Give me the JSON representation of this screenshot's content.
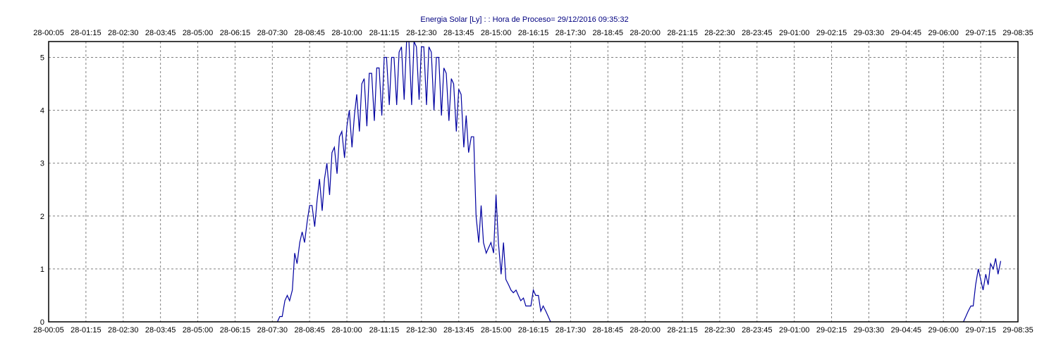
{
  "chart_data": {
    "type": "line",
    "title": "Energia Solar [Ly] : : Hora de Proceso= 29/12/2016 09:35:32",
    "xlabel": "",
    "ylabel": "",
    "ylim": [
      0,
      5.3
    ],
    "y_ticks": [
      0,
      1,
      2,
      3,
      4,
      5
    ],
    "x_tick_labels": [
      "28-00:05",
      "28-01:15",
      "28-02:30",
      "28-03:45",
      "28-05:00",
      "28-06:15",
      "28-07:30",
      "28-08:45",
      "28-10:00",
      "28-11:15",
      "28-12:30",
      "28-13:45",
      "28-15:00",
      "28-16:15",
      "28-17:30",
      "28-18:45",
      "28-20:00",
      "28-21:15",
      "28-22:30",
      "28-23:45",
      "29-01:00",
      "29-02:15",
      "29-03:30",
      "29-04:45",
      "29-06:00",
      "29-07:15",
      "29-08:35"
    ],
    "grid": true,
    "legend": "none",
    "series_color": "#0000a0",
    "series": [
      {
        "values": [
          [
            7.67,
            0
          ],
          [
            7.75,
            0.1
          ],
          [
            7.83,
            0.1
          ],
          [
            7.92,
            0.4
          ],
          [
            8.0,
            0.5
          ],
          [
            8.08,
            0.4
          ],
          [
            8.17,
            0.6
          ],
          [
            8.25,
            1.3
          ],
          [
            8.33,
            1.1
          ],
          [
            8.42,
            1.5
          ],
          [
            8.5,
            1.7
          ],
          [
            8.58,
            1.5
          ],
          [
            8.67,
            1.9
          ],
          [
            8.75,
            2.2
          ],
          [
            8.83,
            2.2
          ],
          [
            8.92,
            1.8
          ],
          [
            9.0,
            2.3
          ],
          [
            9.08,
            2.7
          ],
          [
            9.17,
            2.1
          ],
          [
            9.25,
            2.7
          ],
          [
            9.33,
            3.0
          ],
          [
            9.42,
            2.4
          ],
          [
            9.5,
            3.2
          ],
          [
            9.58,
            3.3
          ],
          [
            9.67,
            2.8
          ],
          [
            9.75,
            3.5
          ],
          [
            9.83,
            3.6
          ],
          [
            9.92,
            3.1
          ],
          [
            10.0,
            3.7
          ],
          [
            10.08,
            4.0
          ],
          [
            10.17,
            3.3
          ],
          [
            10.25,
            3.9
          ],
          [
            10.33,
            4.3
          ],
          [
            10.42,
            3.6
          ],
          [
            10.5,
            4.5
          ],
          [
            10.58,
            4.6
          ],
          [
            10.67,
            3.7
          ],
          [
            10.75,
            4.7
          ],
          [
            10.83,
            4.7
          ],
          [
            10.92,
            3.8
          ],
          [
            11.0,
            4.8
          ],
          [
            11.08,
            4.8
          ],
          [
            11.17,
            3.9
          ],
          [
            11.25,
            5.0
          ],
          [
            11.33,
            5.0
          ],
          [
            11.42,
            4.1
          ],
          [
            11.5,
            5.0
          ],
          [
            11.58,
            5.0
          ],
          [
            11.67,
            4.1
          ],
          [
            11.75,
            5.1
          ],
          [
            11.83,
            5.2
          ],
          [
            11.92,
            4.2
          ],
          [
            12.0,
            5.3
          ],
          [
            12.08,
            5.3
          ],
          [
            12.17,
            4.1
          ],
          [
            12.25,
            5.3
          ],
          [
            12.33,
            5.2
          ],
          [
            12.42,
            4.2
          ],
          [
            12.5,
            5.2
          ],
          [
            12.58,
            5.2
          ],
          [
            12.67,
            4.1
          ],
          [
            12.75,
            5.2
          ],
          [
            12.83,
            5.1
          ],
          [
            12.92,
            4.0
          ],
          [
            13.0,
            5.0
          ],
          [
            13.08,
            5.0
          ],
          [
            13.17,
            3.9
          ],
          [
            13.25,
            4.8
          ],
          [
            13.33,
            4.7
          ],
          [
            13.42,
            3.8
          ],
          [
            13.5,
            4.6
          ],
          [
            13.58,
            4.5
          ],
          [
            13.67,
            3.6
          ],
          [
            13.75,
            4.4
          ],
          [
            13.83,
            4.3
          ],
          [
            13.92,
            3.3
          ],
          [
            14.0,
            3.9
          ],
          [
            14.08,
            3.2
          ],
          [
            14.17,
            3.5
          ],
          [
            14.25,
            3.5
          ],
          [
            14.33,
            2.0
          ],
          [
            14.42,
            1.5
          ],
          [
            14.5,
            2.2
          ],
          [
            14.58,
            1.5
          ],
          [
            14.67,
            1.3
          ],
          [
            14.75,
            1.4
          ],
          [
            14.83,
            1.5
          ],
          [
            14.92,
            1.3
          ],
          [
            15.0,
            2.4
          ],
          [
            15.08,
            1.5
          ],
          [
            15.17,
            0.9
          ],
          [
            15.25,
            1.5
          ],
          [
            15.33,
            0.8
          ],
          [
            15.42,
            0.7
          ],
          [
            15.5,
            0.6
          ],
          [
            15.58,
            0.55
          ],
          [
            15.67,
            0.6
          ],
          [
            15.75,
            0.5
          ],
          [
            15.83,
            0.4
          ],
          [
            15.92,
            0.45
          ],
          [
            16.0,
            0.3
          ],
          [
            16.08,
            0.3
          ],
          [
            16.17,
            0.3
          ],
          [
            16.25,
            0.6
          ],
          [
            16.33,
            0.5
          ],
          [
            16.42,
            0.5
          ],
          [
            16.5,
            0.2
          ],
          [
            16.58,
            0.3
          ],
          [
            16.67,
            0.2
          ],
          [
            16.75,
            0.1
          ],
          [
            16.83,
            0.0
          ],
          null,
          [
            30.67,
            0
          ],
          [
            30.75,
            0.1
          ],
          [
            30.83,
            0.2
          ],
          [
            30.92,
            0.3
          ],
          [
            31.0,
            0.3
          ],
          [
            31.08,
            0.7
          ],
          [
            31.17,
            1.0
          ],
          [
            31.25,
            0.8
          ],
          [
            31.33,
            0.6
          ],
          [
            31.42,
            0.9
          ],
          [
            31.5,
            0.7
          ],
          [
            31.58,
            1.1
          ],
          [
            31.67,
            1.0
          ],
          [
            31.75,
            1.2
          ],
          [
            31.83,
            0.9
          ],
          [
            31.92,
            1.15
          ]
        ]
      }
    ]
  }
}
